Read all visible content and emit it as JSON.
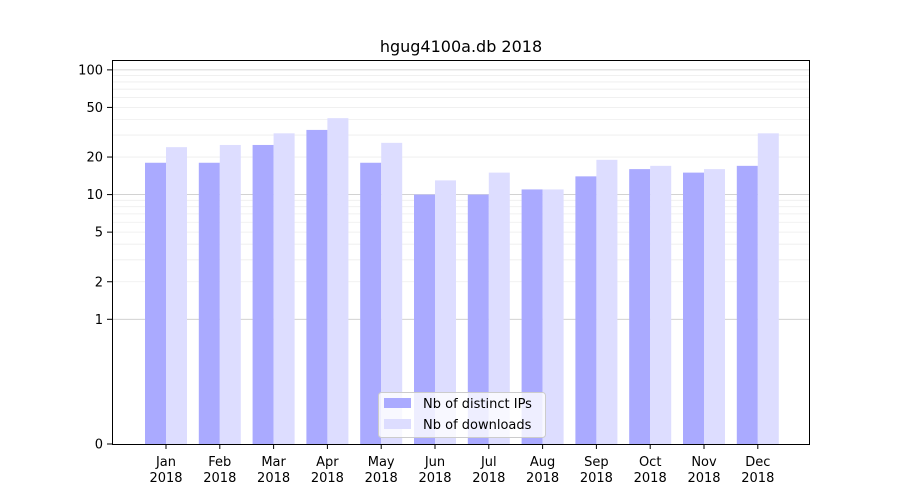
{
  "chart_data": {
    "type": "bar",
    "title": "hgug4100a.db 2018",
    "xlabel": "",
    "ylabel": "",
    "yscale": "symlog",
    "ylim": [
      0,
      120
    ],
    "yticks": [
      0,
      1,
      2,
      5,
      10,
      20,
      50,
      100
    ],
    "grid": true,
    "legend_position": "bottom-center",
    "categories": [
      "Jan\n2018",
      "Feb\n2018",
      "Mar\n2018",
      "Apr\n2018",
      "May\n2018",
      "Jun\n2018",
      "Jul\n2018",
      "Aug\n2018",
      "Sep\n2018",
      "Oct\n2018",
      "Nov\n2018",
      "Dec\n2018"
    ],
    "series": [
      {
        "name": "Nb of distinct IPs",
        "color": "#aaaaff",
        "values": [
          18,
          18,
          25,
          33,
          18,
          10,
          10,
          11,
          14,
          16,
          15,
          17
        ]
      },
      {
        "name": "Nb of downloads",
        "color": "#ddddff",
        "values": [
          24,
          25,
          31,
          41,
          26,
          13,
          15,
          11,
          19,
          17,
          16,
          31
        ]
      }
    ]
  }
}
